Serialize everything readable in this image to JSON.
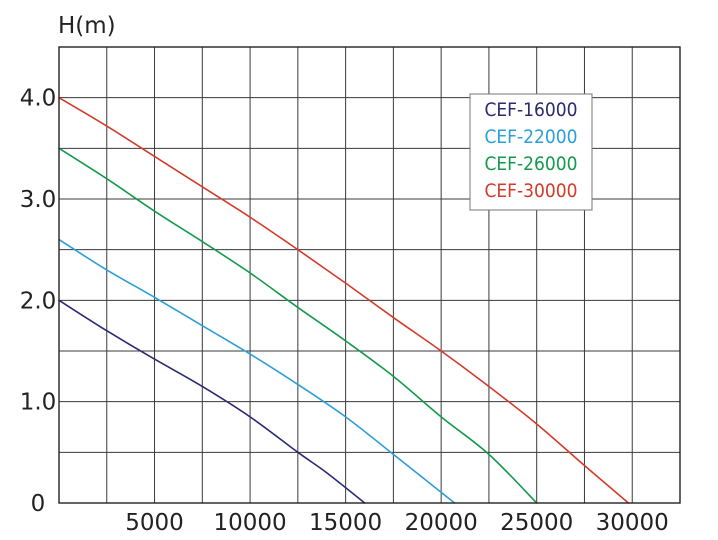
{
  "chart_data": {
    "type": "line",
    "title": "",
    "ylabel": "H(m)",
    "xlabel": "",
    "xlim": [
      0,
      32500
    ],
    "ylim": [
      0,
      4.5
    ],
    "grid": true,
    "legend_position": "top-right",
    "x_tick_labels": [
      "5000",
      "10000",
      "15000",
      "20000",
      "25000",
      "30000"
    ],
    "y_tick_labels": [
      "0",
      "1.0",
      "2.0",
      "3.0",
      "4.0"
    ],
    "series": [
      {
        "name": "CEF-16000",
        "color": "#2b2a72",
        "points": [
          [
            0,
            2.0
          ],
          [
            2500,
            1.7
          ],
          [
            5000,
            1.42
          ],
          [
            7500,
            1.15
          ],
          [
            10000,
            0.85
          ],
          [
            12500,
            0.5
          ],
          [
            14000,
            0.3
          ],
          [
            16000,
            0.0
          ]
        ]
      },
      {
        "name": "CEF-22000",
        "color": "#2a9fd8",
        "points": [
          [
            0,
            2.6
          ],
          [
            2500,
            2.3
          ],
          [
            5000,
            2.03
          ],
          [
            7500,
            1.75
          ],
          [
            10000,
            1.47
          ],
          [
            12500,
            1.17
          ],
          [
            15000,
            0.85
          ],
          [
            17500,
            0.48
          ],
          [
            20700,
            0.0
          ]
        ]
      },
      {
        "name": "CEF-26000",
        "color": "#149a4d",
        "points": [
          [
            0,
            3.5
          ],
          [
            2500,
            3.2
          ],
          [
            5000,
            2.88
          ],
          [
            7500,
            2.58
          ],
          [
            10000,
            2.27
          ],
          [
            12500,
            1.93
          ],
          [
            15000,
            1.6
          ],
          [
            17500,
            1.25
          ],
          [
            20000,
            0.85
          ],
          [
            22500,
            0.48
          ],
          [
            25000,
            0.0
          ]
        ]
      },
      {
        "name": "CEF-30000",
        "color": "#d43a2a",
        "points": [
          [
            0,
            4.0
          ],
          [
            2500,
            3.72
          ],
          [
            5000,
            3.42
          ],
          [
            7500,
            3.12
          ],
          [
            10000,
            2.82
          ],
          [
            12500,
            2.5
          ],
          [
            15000,
            2.17
          ],
          [
            17500,
            1.83
          ],
          [
            20000,
            1.5
          ],
          [
            22500,
            1.15
          ],
          [
            25000,
            0.78
          ],
          [
            27500,
            0.37
          ],
          [
            29800,
            0.0
          ]
        ]
      }
    ]
  }
}
